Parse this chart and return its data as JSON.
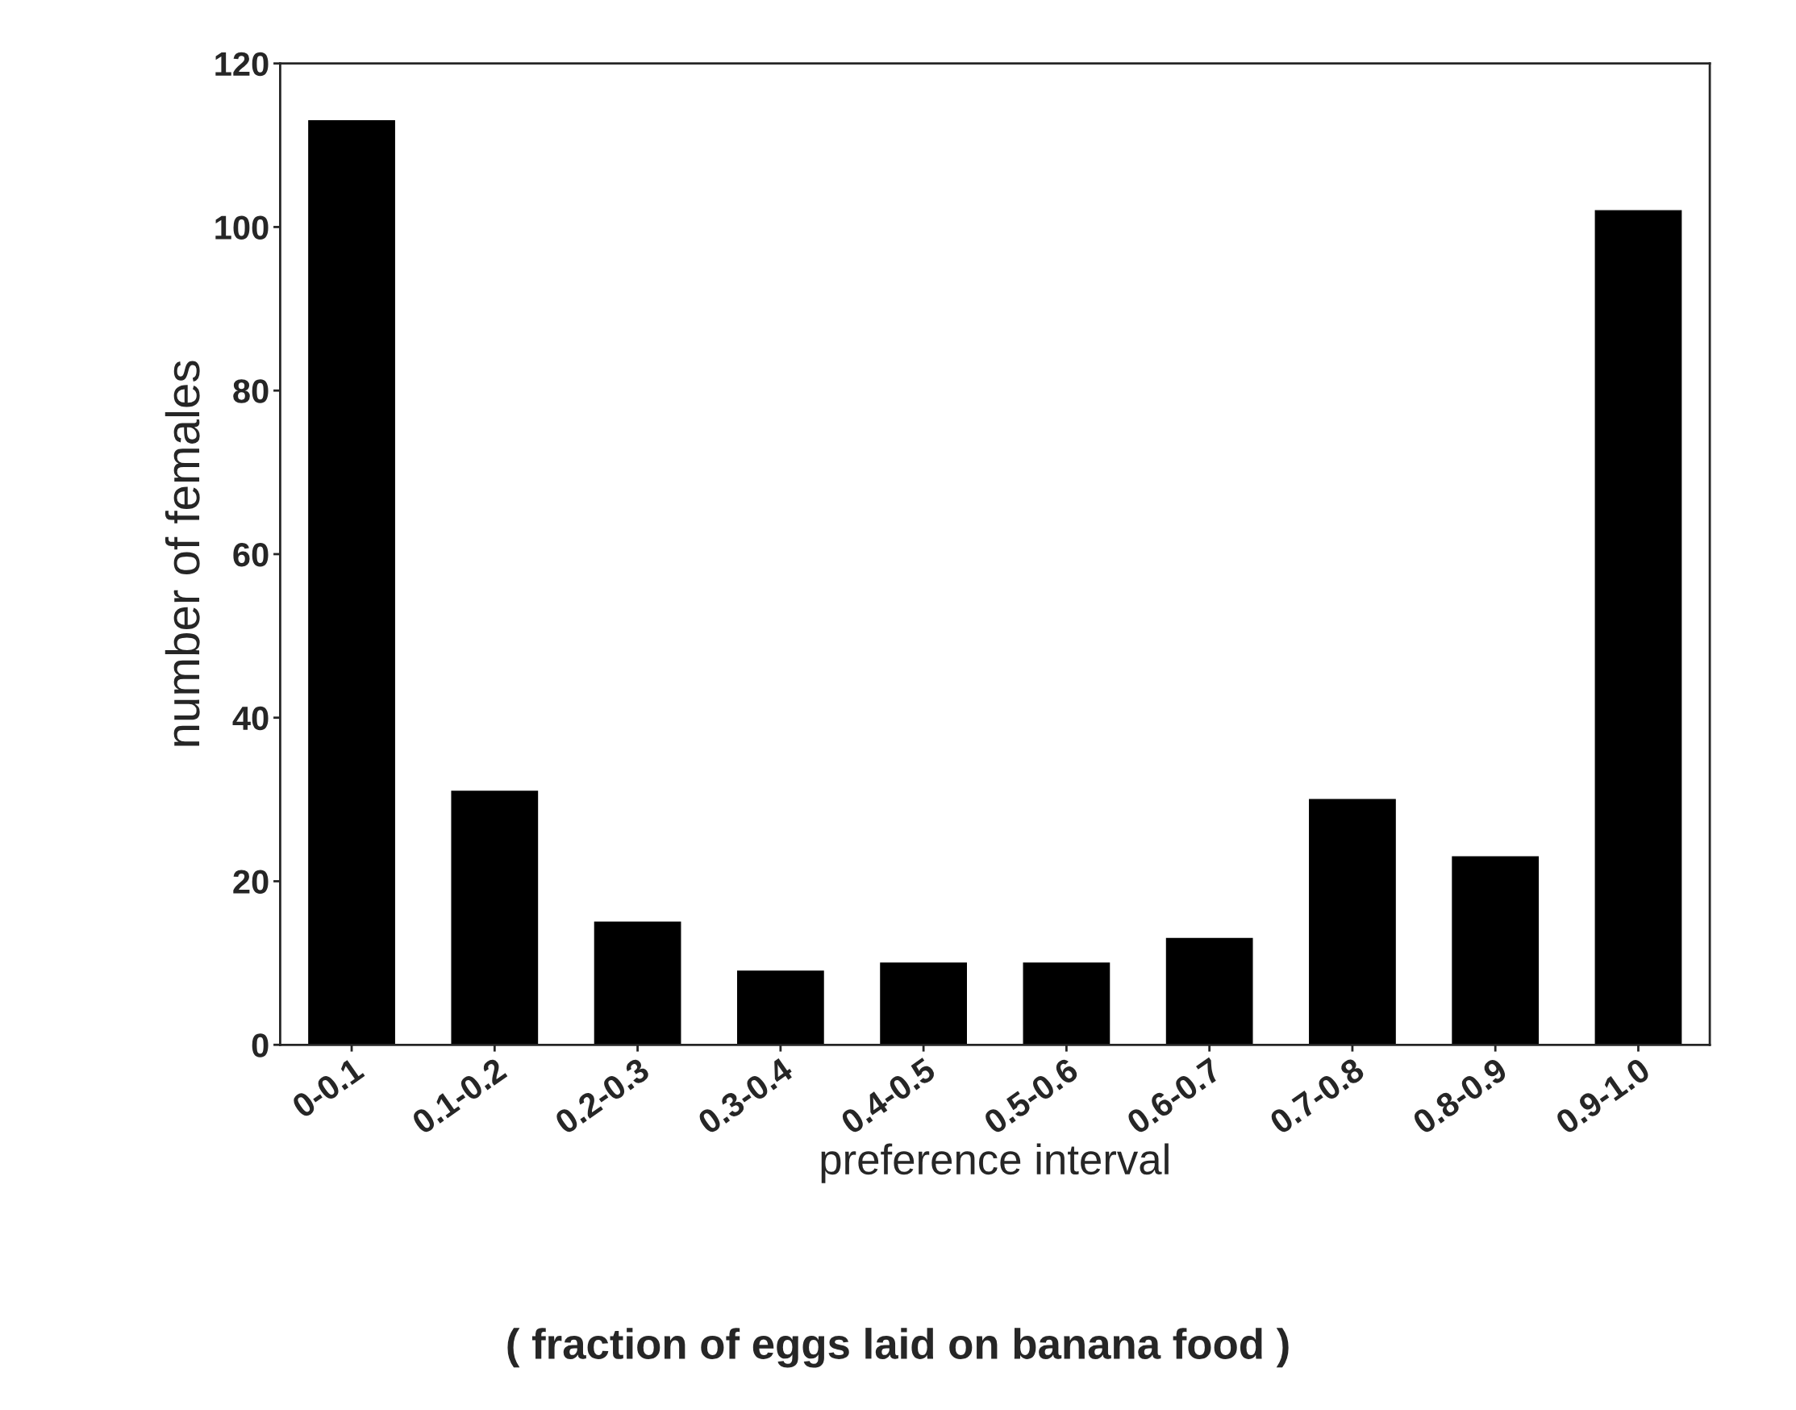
{
  "chart_data": {
    "type": "bar",
    "xlabel": "preference interval",
    "ylabel": "number of females",
    "annotations": [
      "( fraction of eggs laid on banana food )"
    ],
    "categories": [
      "0-0.1",
      "0.1-0.2",
      "0.2-0.3",
      "0.3-0.4",
      "0.4-0.5",
      "0.5-0.6",
      "0.6-0.7",
      "0.7-0.8",
      "0.8-0.9",
      "0.9-1.0"
    ],
    "values": [
      113,
      31,
      15,
      9,
      10,
      10,
      13,
      30,
      23,
      102
    ],
    "color": "#000000",
    "ylim": [
      0,
      120
    ],
    "yticks": [
      0,
      20,
      40,
      60,
      80,
      100,
      120
    ],
    "grid": false,
    "legend": false
  }
}
